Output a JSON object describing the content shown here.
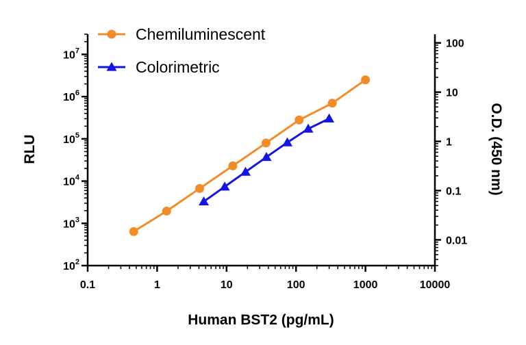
{
  "chart_data": {
    "type": "line",
    "title": "",
    "xlabel": "Human BST2 (pg/mL)",
    "ylabel": "RLU",
    "y2label": "O.D. (450 nm)",
    "xscale": "log",
    "yscale": "log",
    "y2scale": "log",
    "xlim": [
      0.1,
      10000
    ],
    "ylim": [
      100,
      30000000
    ],
    "y2lim": [
      0.003,
      150
    ],
    "x_ticks": [
      "0.1",
      "1",
      "10",
      "100",
      "1000",
      "10000"
    ],
    "y_ticks": [
      {
        "base": "10",
        "exp": "2"
      },
      {
        "base": "10",
        "exp": "3"
      },
      {
        "base": "10",
        "exp": "4"
      },
      {
        "base": "10",
        "exp": "5"
      },
      {
        "base": "10",
        "exp": "6"
      },
      {
        "base": "10",
        "exp": "7"
      }
    ],
    "y2_ticks": [
      "0.01",
      "0.1",
      "1",
      "10",
      "100"
    ],
    "legend_position": "top-left",
    "grid": false,
    "series": [
      {
        "name": "Chemiluminescent",
        "axis": "left",
        "color": "#F28C28",
        "marker": "circle",
        "x": [
          0.46,
          1.37,
          4.1,
          12.3,
          37,
          111,
          333,
          1000
        ],
        "y": [
          640,
          1950,
          6700,
          23000,
          80000,
          280000,
          700000,
          2500000
        ]
      },
      {
        "name": "Colorimetric",
        "axis": "right",
        "color": "#1414E6",
        "marker": "triangle",
        "x": [
          4.7,
          9.4,
          18.75,
          37.5,
          75,
          150,
          300
        ],
        "y": [
          0.06,
          0.12,
          0.24,
          0.48,
          0.95,
          1.8,
          2.9
        ]
      }
    ]
  }
}
